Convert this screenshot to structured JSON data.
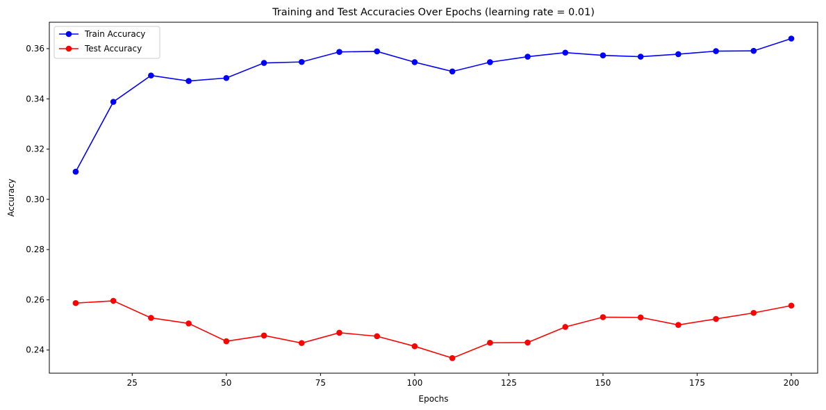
{
  "chart_data": {
    "type": "line",
    "title": "Training and Test Accuracies Over Epochs (learning rate = 0.01)",
    "xlabel": "Epochs",
    "ylabel": "Accuracy",
    "xlim": [
      3,
      207
    ],
    "ylim": [
      0.2308,
      0.3705
    ],
    "xticks": [
      25,
      50,
      75,
      100,
      125,
      150,
      175,
      200
    ],
    "yticks": [
      0.24,
      0.26,
      0.28,
      0.3,
      0.32,
      0.34,
      0.36
    ],
    "x": [
      10,
      20,
      30,
      40,
      50,
      60,
      70,
      80,
      90,
      100,
      110,
      120,
      130,
      140,
      150,
      160,
      170,
      180,
      190,
      200
    ],
    "series": [
      {
        "name": "Train Accuracy",
        "color": "#0000ff",
        "marker": "circle",
        "values": [
          0.311,
          0.3388,
          0.3493,
          0.3471,
          0.3483,
          0.3543,
          0.3547,
          0.3587,
          0.3589,
          0.3546,
          0.3509,
          0.3546,
          0.3568,
          0.3584,
          0.3573,
          0.3568,
          0.3578,
          0.359,
          0.3591,
          0.364
        ]
      },
      {
        "name": "Test Accuracy",
        "color": "#ff0000",
        "marker": "circle",
        "values": [
          0.2587,
          0.2596,
          0.2528,
          0.2506,
          0.2435,
          0.2458,
          0.2428,
          0.2469,
          0.2455,
          0.2415,
          0.2368,
          0.2429,
          0.243,
          0.2492,
          0.2531,
          0.253,
          0.25,
          0.2524,
          0.2548,
          0.2577
        ]
      }
    ],
    "legend": {
      "placement": "upper-left"
    },
    "grid": false
  }
}
